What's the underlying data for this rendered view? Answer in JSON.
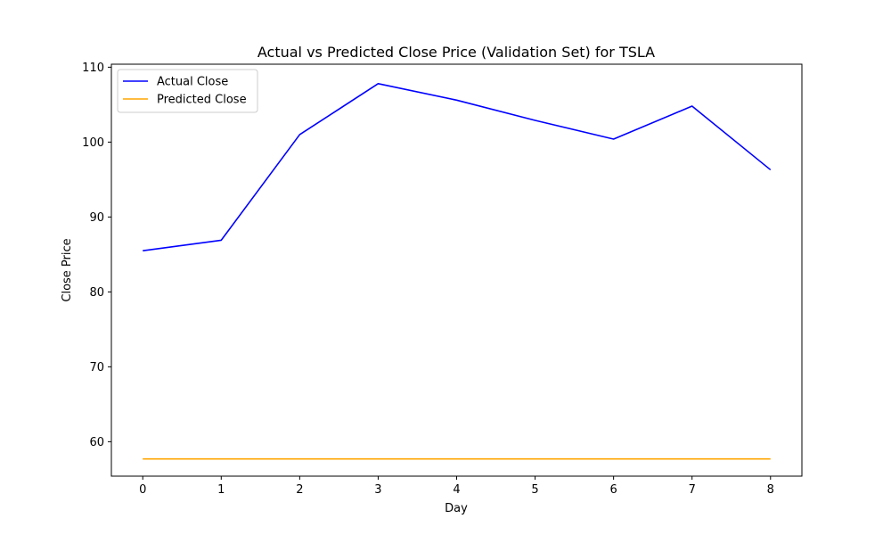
{
  "chart_data": {
    "type": "line",
    "title": "Actual vs Predicted Close Price (Validation Set) for TSLA",
    "xlabel": "Day",
    "ylabel": "Close Price",
    "x": [
      0,
      1,
      2,
      3,
      4,
      5,
      6,
      7,
      8
    ],
    "xticks": [
      0,
      1,
      2,
      3,
      4,
      5,
      6,
      7,
      8
    ],
    "yticks": [
      60,
      70,
      80,
      90,
      100,
      110
    ],
    "xlim": [
      -0.4,
      8.4
    ],
    "ylim": [
      55.4,
      110.4
    ],
    "grid": false,
    "legend_position": "top-left",
    "series": [
      {
        "name": "Actual Close",
        "color": "#0000ff",
        "values": [
          85.5,
          86.9,
          101.0,
          107.8,
          105.6,
          102.9,
          100.4,
          104.8,
          96.3
        ]
      },
      {
        "name": "Predicted Close",
        "color": "#ffa500",
        "values": [
          57.7,
          57.7,
          57.7,
          57.7,
          57.7,
          57.7,
          57.7,
          57.7,
          57.7
        ]
      }
    ]
  }
}
